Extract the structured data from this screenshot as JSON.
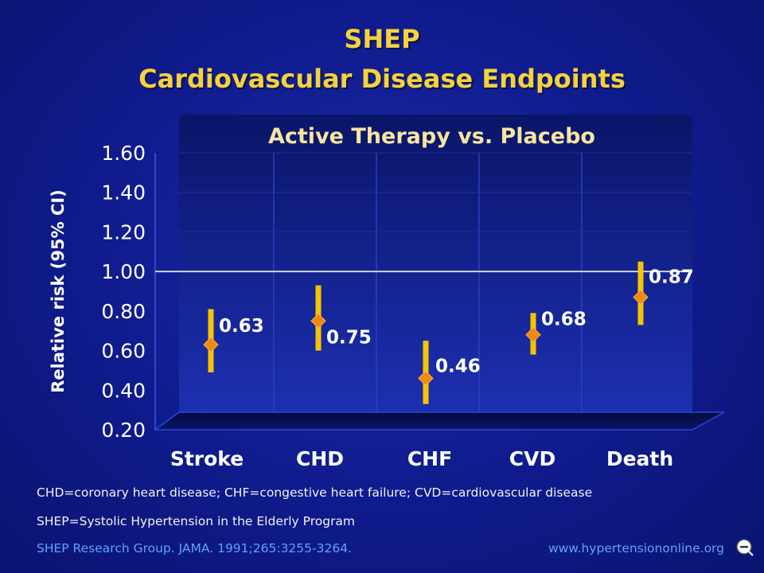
{
  "header": {
    "title_line1": "SHEP",
    "title_line2": "Cardiovascular Disease Endpoints"
  },
  "chart_data": {
    "type": "scatter",
    "subtitle": "Active Therapy vs. Placebo",
    "ylabel": "Relative risk (95% CI)",
    "xlabel": "",
    "ylim": [
      0.2,
      1.6
    ],
    "yticks": [
      "1.60",
      "1.40",
      "1.20",
      "1.00",
      "0.80",
      "0.60",
      "0.40",
      "0.20"
    ],
    "reference_line": 1.0,
    "grid": true,
    "categories": [
      "Stroke",
      "CHD",
      "CHF",
      "CVD",
      "Death"
    ],
    "points": [
      {
        "category": "Stroke",
        "value": 0.63,
        "label": "0.63",
        "ci": [
          0.49,
          0.81
        ]
      },
      {
        "category": "CHD",
        "value": 0.75,
        "label": "0.75",
        "ci": [
          0.6,
          0.93
        ]
      },
      {
        "category": "CHF",
        "value": 0.46,
        "label": "0.46",
        "ci": [
          0.33,
          0.65
        ]
      },
      {
        "category": "CVD",
        "value": 0.68,
        "label": "0.68",
        "ci": [
          0.58,
          0.79
        ]
      },
      {
        "category": "Death",
        "value": 0.87,
        "label": "0.87",
        "ci": [
          0.73,
          1.05
        ]
      }
    ],
    "colors": {
      "ci_bar": "#f5c400",
      "marker": "#f08a0c",
      "reference": "#cfd3e6"
    }
  },
  "footer": {
    "note1": "CHD=coronary heart disease; CHF=congestive heart failure; CVD=cardiovascular disease",
    "note2": "SHEP=Systolic Hypertension in the Elderly Program",
    "source": "SHEP Research Group. JAMA. 1991;265:3255-3264.",
    "website": "www.hypertensiononline.org",
    "zoom_icon": "zoom-out-icon"
  }
}
